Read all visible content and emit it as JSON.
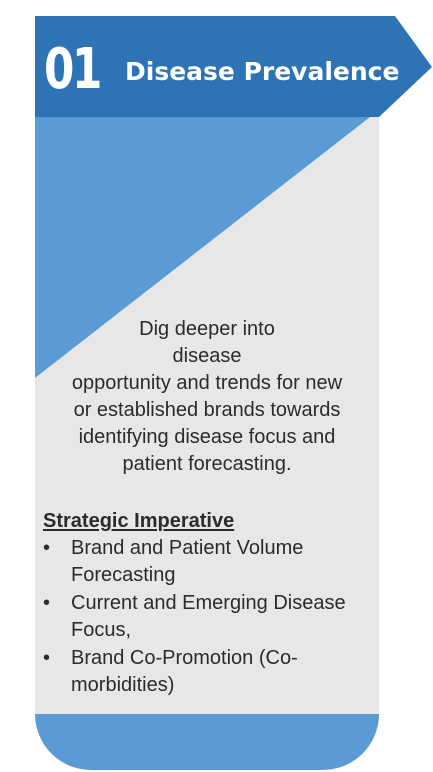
{
  "header": {
    "number": "01",
    "title": "Disease Prevalence"
  },
  "description": {
    "lines": [
      "Dig deeper into",
      "disease",
      "opportunity and trends for new",
      "or established brands towards",
      "identifying disease focus and",
      "patient forecasting."
    ]
  },
  "strategic_imperative": {
    "title": "Strategic Imperative",
    "bullet": "•",
    "items": [
      {
        "label": "Brand and Patient Volume Forecasting"
      },
      {
        "label": "Current and Emerging Disease Focus,"
      },
      {
        "label": "Brand Co-Promotion (Co-morbidities)"
      }
    ]
  },
  "colors": {
    "header_dark": "#2e74b5",
    "accent_light": "#5b9bd5",
    "card_bg": "#e7e7e7",
    "text": "#2b2b2b"
  }
}
